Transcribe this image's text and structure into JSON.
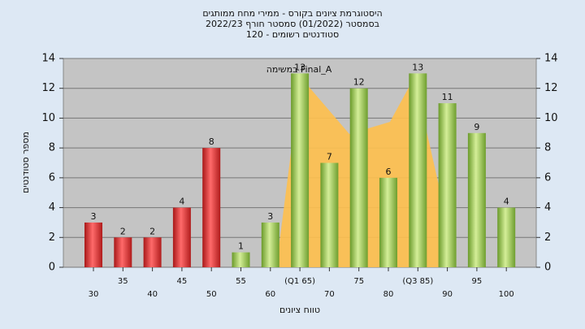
{
  "chart_data": {
    "type": "bar",
    "title": "היסטוגרמת ציונים בקורס - ממירי מחח ממותגים",
    "subtitle": "בסמסטר  (01/2022)  סמסטר חורף 2022/23",
    "subtitle2": "סטודנטים רשומים - 120",
    "annotation": "במשימה Final_A",
    "x_label": "טווח ציונים",
    "y_label": "מספר סטודנטים",
    "categories": [
      "30",
      "35",
      "40",
      "45",
      "50",
      "55",
      "60",
      "(Q1 65)",
      "70",
      "75",
      "80",
      "(Q3 85)",
      "90",
      "95",
      "100"
    ],
    "values": [
      3,
      2,
      2,
      4,
      8,
      1,
      3,
      13,
      7,
      12,
      6,
      13,
      11,
      9,
      4
    ],
    "colors": [
      "red",
      "red",
      "red",
      "red",
      "red",
      "green",
      "green",
      "green",
      "green",
      "green",
      "green",
      "green",
      "green",
      "green",
      "green"
    ],
    "ylim": [
      0,
      14
    ],
    "yticks": [
      0,
      2,
      4,
      6,
      8,
      10,
      12,
      14
    ],
    "y2lim": [
      0,
      14
    ],
    "y2ticks": [
      0,
      2,
      4,
      6,
      8,
      10,
      12,
      14
    ],
    "grid": true
  }
}
